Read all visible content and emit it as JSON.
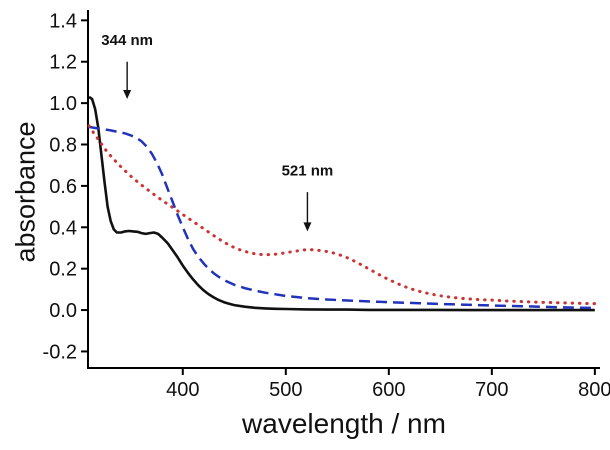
{
  "chart_data": {
    "type": "line",
    "title": "",
    "xlabel": "wavelength / nm",
    "ylabel": "absorbance",
    "xlim": [
      308,
      805
    ],
    "ylim": [
      -0.28,
      1.45
    ],
    "x_ticks": [
      400,
      500,
      600,
      700,
      800
    ],
    "y_ticks": [
      -0.2,
      0.0,
      0.2,
      0.4,
      0.6,
      0.8,
      1.0,
      1.2,
      1.4
    ],
    "grid": false,
    "legend": null,
    "axis_color": "#000000",
    "series": [
      {
        "name": "black-solid",
        "color": "#111111",
        "style": "solid",
        "width": 2.6,
        "x": [
          309,
          312,
          315,
          318,
          321,
          324,
          327,
          330,
          333,
          336,
          340,
          344,
          348,
          352,
          356,
          360,
          364,
          368,
          372,
          376,
          380,
          385,
          390,
          395,
          400,
          405,
          410,
          415,
          420,
          425,
          430,
          435,
          440,
          445,
          450,
          460,
          470,
          480,
          490,
          500,
          520,
          540,
          560,
          580,
          600,
          640,
          680,
          720,
          760,
          800
        ],
        "y": [
          1.03,
          1.02,
          0.97,
          0.88,
          0.75,
          0.62,
          0.5,
          0.43,
          0.39,
          0.375,
          0.375,
          0.38,
          0.382,
          0.38,
          0.378,
          0.372,
          0.368,
          0.372,
          0.375,
          0.368,
          0.35,
          0.325,
          0.29,
          0.255,
          0.215,
          0.18,
          0.148,
          0.12,
          0.096,
          0.077,
          0.061,
          0.048,
          0.038,
          0.03,
          0.024,
          0.016,
          0.011,
          0.008,
          0.006,
          0.005,
          0.003,
          0.002,
          0.002,
          0.001,
          0.001,
          0.001,
          0.0,
          0.0,
          0.0,
          0.0
        ]
      },
      {
        "name": "blue-dashed",
        "color": "#2233bb",
        "style": "dashed",
        "width": 2.5,
        "x": [
          309,
          315,
          320,
          325,
          330,
          335,
          340,
          345,
          350,
          355,
          360,
          365,
          370,
          375,
          380,
          385,
          390,
          395,
          400,
          405,
          410,
          415,
          420,
          425,
          430,
          435,
          440,
          450,
          460,
          470,
          480,
          490,
          500,
          520,
          540,
          560,
          580,
          600,
          630,
          660,
          700,
          740,
          770,
          800
        ],
        "y": [
          0.885,
          0.88,
          0.875,
          0.872,
          0.868,
          0.863,
          0.858,
          0.852,
          0.843,
          0.832,
          0.815,
          0.79,
          0.755,
          0.71,
          0.655,
          0.59,
          0.525,
          0.46,
          0.4,
          0.345,
          0.295,
          0.258,
          0.227,
          0.2,
          0.178,
          0.16,
          0.145,
          0.122,
          0.106,
          0.094,
          0.084,
          0.076,
          0.068,
          0.058,
          0.051,
          0.046,
          0.042,
          0.038,
          0.033,
          0.028,
          0.022,
          0.017,
          0.013,
          0.01
        ]
      },
      {
        "name": "red-dotted",
        "color": "#cc3333",
        "style": "dotted",
        "width": 3.0,
        "x": [
          309,
          315,
          320,
          325,
          330,
          335,
          340,
          345,
          350,
          355,
          360,
          365,
          370,
          375,
          380,
          385,
          390,
          395,
          400,
          405,
          410,
          415,
          420,
          425,
          430,
          435,
          440,
          445,
          450,
          455,
          460,
          465,
          470,
          475,
          480,
          485,
          490,
          495,
          500,
          505,
          510,
          515,
          521,
          527,
          533,
          540,
          547,
          554,
          561,
          568,
          575,
          582,
          590,
          598,
          606,
          614,
          622,
          630,
          640,
          650,
          660,
          670,
          680,
          690,
          700,
          715,
          730,
          745,
          760,
          775,
          790,
          800
        ],
        "y": [
          0.89,
          0.845,
          0.81,
          0.775,
          0.745,
          0.718,
          0.692,
          0.668,
          0.645,
          0.624,
          0.604,
          0.585,
          0.566,
          0.548,
          0.53,
          0.513,
          0.496,
          0.479,
          0.462,
          0.445,
          0.428,
          0.411,
          0.394,
          0.377,
          0.36,
          0.344,
          0.328,
          0.314,
          0.302,
          0.292,
          0.284,
          0.277,
          0.272,
          0.269,
          0.268,
          0.268,
          0.27,
          0.273,
          0.277,
          0.281,
          0.285,
          0.289,
          0.292,
          0.291,
          0.288,
          0.283,
          0.275,
          0.264,
          0.25,
          0.233,
          0.214,
          0.195,
          0.173,
          0.152,
          0.133,
          0.116,
          0.102,
          0.09,
          0.078,
          0.069,
          0.062,
          0.057,
          0.053,
          0.05,
          0.048,
          0.044,
          0.041,
          0.038,
          0.036,
          0.034,
          0.032,
          0.031
        ]
      }
    ],
    "annotations": [
      {
        "label": "344 nm",
        "x": 346,
        "text_y": 1.28,
        "arrow_from_y": 1.2,
        "arrow_to_y": 1.02
      },
      {
        "label": "521 nm",
        "x": 521,
        "text_y": 0.65,
        "arrow_from_y": 0.57,
        "arrow_to_y": 0.38
      }
    ]
  }
}
